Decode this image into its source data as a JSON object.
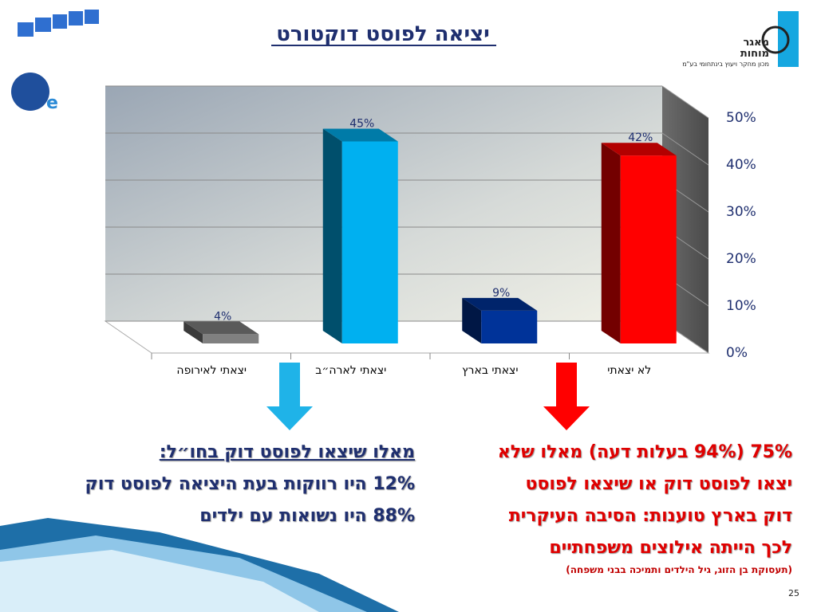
{
  "slide": {
    "title": "יציאה לפוסט דוקטורט",
    "logo": {
      "name_line1": "מאגר",
      "name_line2": "מוחות",
      "tagline": "מכון מחקר ויעוץ בינתחומי בע\"מ"
    },
    "left_text": [
      "מאלו שיצאו לפוסט דוק בחו״ל:",
      "12% היו רווקות בעת היציאה לפוסט דוק",
      "88% היו נשואות עם ילדים"
    ],
    "right_text": [
      "75% (94% בעלות דעה) מאלו שלא",
      "יצאו לפוסט דוק או שיצאו לפוסט",
      "דוק בארץ טוענות: הסיבה העיקרית",
      "לכך הייתה אילוצים משפחתיים"
    ],
    "right_note": "(תעסוקת בן הזוג, גיל הילדים ותמיכה בבני משפחה)",
    "page_number": "25"
  },
  "chart_data": {
    "type": "bar3d",
    "categories": [
      "יצאתי לאירופה",
      "יצאתי לארה״ב",
      "יצאתי בארץ",
      "לא יצאתי"
    ],
    "values": [
      4,
      45,
      9,
      42
    ],
    "value_labels": [
      "4%",
      "45%",
      "9%",
      "42%"
    ],
    "colors": [
      "#808080",
      "#00b0f0",
      "#003399",
      "#ff0000"
    ],
    "ylim": [
      0,
      50
    ],
    "yticks": [
      {
        "value": 0,
        "label": "0%"
      },
      {
        "value": 10,
        "label": "10%"
      },
      {
        "value": 20,
        "label": "20%"
      },
      {
        "value": 30,
        "label": "30%"
      },
      {
        "value": 40,
        "label": "40%"
      },
      {
        "value": 50,
        "label": "50%"
      }
    ],
    "y_axis_side": "right",
    "grid": true
  }
}
